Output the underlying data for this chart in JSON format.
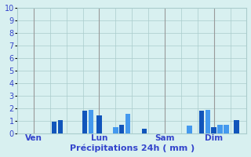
{
  "title": "Précipitations 24h ( mm )",
  "ylim": [
    0,
    10
  ],
  "yticks": [
    0,
    1,
    2,
    3,
    4,
    5,
    6,
    7,
    8,
    9,
    10
  ],
  "background_color": "#d8f0f0",
  "bar_color_dark": "#1155bb",
  "bar_color_light": "#4499ee",
  "bar_color_red": "#cc2222",
  "grid_color": "#aacccc",
  "vline_color": "#999999",
  "text_color": "#3344cc",
  "day_labels": [
    {
      "label": "Ven",
      "x": 8
    },
    {
      "label": "Lun",
      "x": 40
    },
    {
      "label": "Sam",
      "x": 72
    },
    {
      "label": "Dim",
      "x": 96
    }
  ],
  "bars": [
    {
      "x": 18,
      "height": 0.9,
      "dark": true
    },
    {
      "x": 21,
      "height": 1.05,
      "dark": true
    },
    {
      "x": 33,
      "height": 1.8,
      "dark": true
    },
    {
      "x": 36,
      "height": 1.85,
      "dark": false
    },
    {
      "x": 40,
      "height": 1.4,
      "dark": true
    },
    {
      "x": 48,
      "height": 0.5,
      "dark": false
    },
    {
      "x": 51,
      "height": 0.7,
      "dark": true
    },
    {
      "x": 54,
      "height": 1.55,
      "dark": false
    },
    {
      "x": 62,
      "height": 0.35,
      "dark": true
    },
    {
      "x": 84,
      "height": 0.6,
      "dark": false
    },
    {
      "x": 90,
      "height": 1.8,
      "dark": true
    },
    {
      "x": 93,
      "height": 1.85,
      "dark": false
    },
    {
      "x": 96,
      "height": 0.5,
      "dark": true
    },
    {
      "x": 99,
      "height": 0.65,
      "dark": false
    },
    {
      "x": 102,
      "height": 0.7,
      "dark": false
    },
    {
      "x": 107,
      "height": 1.05,
      "dark": true
    }
  ],
  "vlines_x": [
    8,
    40,
    72,
    96
  ],
  "xlim": [
    0,
    112
  ],
  "bar_width": 2.5,
  "figsize": [
    3.2,
    2.0
  ],
  "dpi": 100
}
